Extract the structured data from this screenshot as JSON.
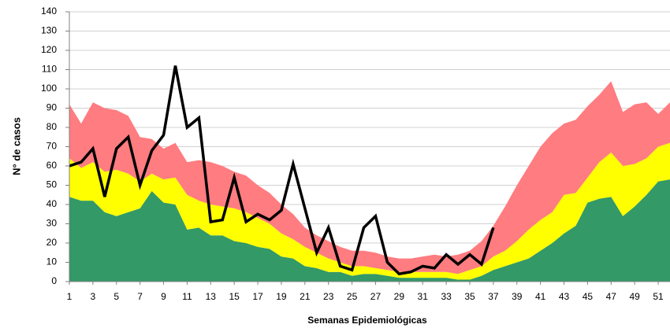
{
  "chart_data": {
    "type": "area",
    "stacked": true,
    "y_label": "N° de casos",
    "x_label": "Semanas Epidemiológicas",
    "x": [
      1,
      2,
      3,
      4,
      5,
      6,
      7,
      8,
      9,
      10,
      11,
      12,
      13,
      14,
      15,
      16,
      17,
      18,
      19,
      20,
      21,
      22,
      23,
      24,
      25,
      26,
      27,
      28,
      29,
      30,
      31,
      32,
      33,
      34,
      35,
      36,
      37,
      38,
      39,
      40,
      41,
      42,
      43,
      44,
      45,
      46,
      47,
      48,
      49,
      50,
      51,
      52
    ],
    "xlim": [
      1,
      52
    ],
    "xticks": [
      1,
      3,
      5,
      7,
      9,
      11,
      13,
      15,
      17,
      19,
      21,
      23,
      25,
      27,
      29,
      31,
      33,
      35,
      37,
      39,
      41,
      43,
      45,
      47,
      49,
      51
    ],
    "ylim": [
      0,
      140
    ],
    "yticks": [
      0,
      10,
      20,
      30,
      40,
      50,
      60,
      70,
      80,
      90,
      100,
      110,
      120,
      130,
      140
    ],
    "grid": true,
    "series": [
      {
        "color": "#339966",
        "values": [
          44,
          42,
          42,
          36,
          34,
          36,
          38,
          47,
          41,
          40,
          27,
          28,
          24,
          24,
          21,
          20,
          18,
          17,
          13,
          12,
          8,
          7,
          5,
          5,
          3,
          4,
          4,
          3,
          2,
          2,
          2,
          2,
          2,
          1,
          1,
          3,
          6,
          8,
          10,
          12,
          16,
          20,
          25,
          29,
          41,
          43,
          44,
          34,
          39,
          45,
          52,
          53
        ]
      },
      {
        "color": "#ffff00",
        "values": [
          20,
          17,
          20,
          21,
          24,
          20,
          14,
          9,
          12,
          14,
          18,
          14,
          16,
          15,
          17,
          16,
          15,
          13,
          12,
          10,
          10,
          8,
          7,
          5,
          5,
          4,
          3,
          3,
          3,
          3,
          3,
          3,
          3,
          3,
          5,
          5,
          7,
          8,
          11,
          15,
          16,
          16,
          20,
          17,
          13,
          19,
          23,
          26,
          22,
          19,
          18,
          19
        ]
      },
      {
        "color": "#ff7c80",
        "values": [
          28,
          23,
          31,
          33,
          31,
          30,
          23,
          18,
          16,
          18,
          17,
          21,
          22,
          21,
          19,
          19,
          17,
          16,
          15,
          13,
          10,
          9,
          9,
          8,
          8,
          8,
          8,
          7,
          7,
          7,
          8,
          9,
          8,
          10,
          10,
          13,
          16,
          23,
          29,
          33,
          38,
          41,
          37,
          38,
          37,
          35,
          37,
          28,
          31,
          29,
          17,
          21
        ]
      },
      {
        "type": "line",
        "stacked": false,
        "color": "#000000",
        "values": [
          60,
          62,
          69,
          44,
          69,
          75,
          50,
          68,
          76,
          112,
          80,
          85,
          31,
          32,
          54,
          31,
          35,
          32,
          37,
          61,
          38,
          15,
          28,
          8,
          6,
          28,
          34,
          10,
          4,
          5,
          8,
          7,
          14,
          9,
          14,
          9,
          28,
          null,
          null,
          null,
          null,
          null,
          null,
          null,
          null,
          null,
          null,
          null,
          null,
          null,
          null,
          null
        ]
      }
    ]
  }
}
